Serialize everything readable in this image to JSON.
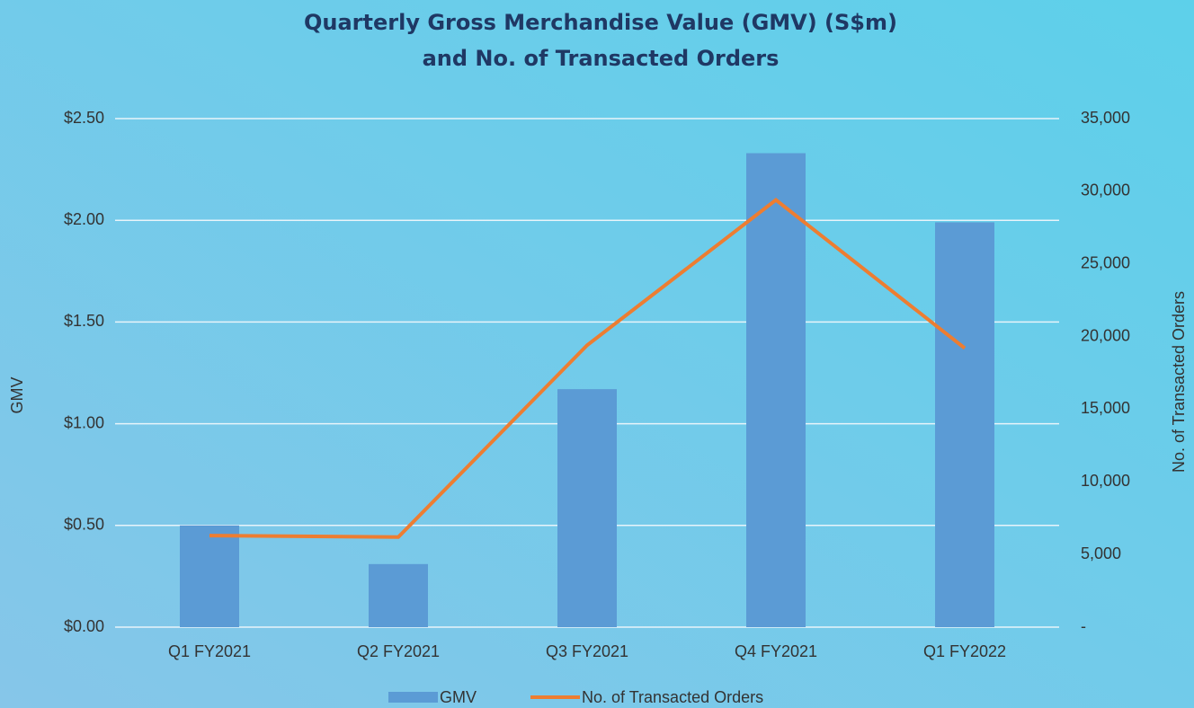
{
  "chart_data": {
    "type": "bar",
    "title": "Quarterly Gross Merchandise Value (GMV) (S$m)",
    "subtitle": "and No. of Transacted Orders",
    "ylabel": "GMV",
    "y2label": "No. of Transacted Orders",
    "categories": [
      "Q1 FY2021",
      "Q2 FY2021",
      "Q3 FY2021",
      "Q4 FY2021",
      "Q1 FY2022"
    ],
    "series": [
      {
        "name": "GMV",
        "type": "bar",
        "color": "#5b9bd5",
        "values": [
          0.5,
          0.31,
          1.17,
          2.33,
          1.99
        ]
      },
      {
        "name": "No. of Transacted Orders",
        "type": "line",
        "color": "#ed7d31",
        "axis": "y2",
        "values": [
          6300,
          6200,
          19400,
          29400,
          19200
        ]
      }
    ],
    "ylim": [
      0,
      2.5
    ],
    "yticks": [
      {
        "value": 0,
        "label": "$0.00"
      },
      {
        "value": 0.5,
        "label": "$0.50"
      },
      {
        "value": 1,
        "label": "$1.00"
      },
      {
        "value": 1.5,
        "label": "$1.50"
      },
      {
        "value": 2,
        "label": "$2.00"
      },
      {
        "value": 2.5,
        "label": "$2.50"
      }
    ],
    "y2lim": [
      0,
      35000
    ],
    "y2ticks": [
      {
        "value": 0,
        "label": "-"
      },
      {
        "value": 5000,
        "label": "5,000"
      },
      {
        "value": 10000,
        "label": "10,000"
      },
      {
        "value": 15000,
        "label": "15,000"
      },
      {
        "value": 20000,
        "label": "20,000"
      },
      {
        "value": 25000,
        "label": "25,000"
      },
      {
        "value": 30000,
        "label": "30,000"
      },
      {
        "value": 35000,
        "label": "35,000"
      }
    ],
    "grid": true,
    "legend": "bottom"
  }
}
